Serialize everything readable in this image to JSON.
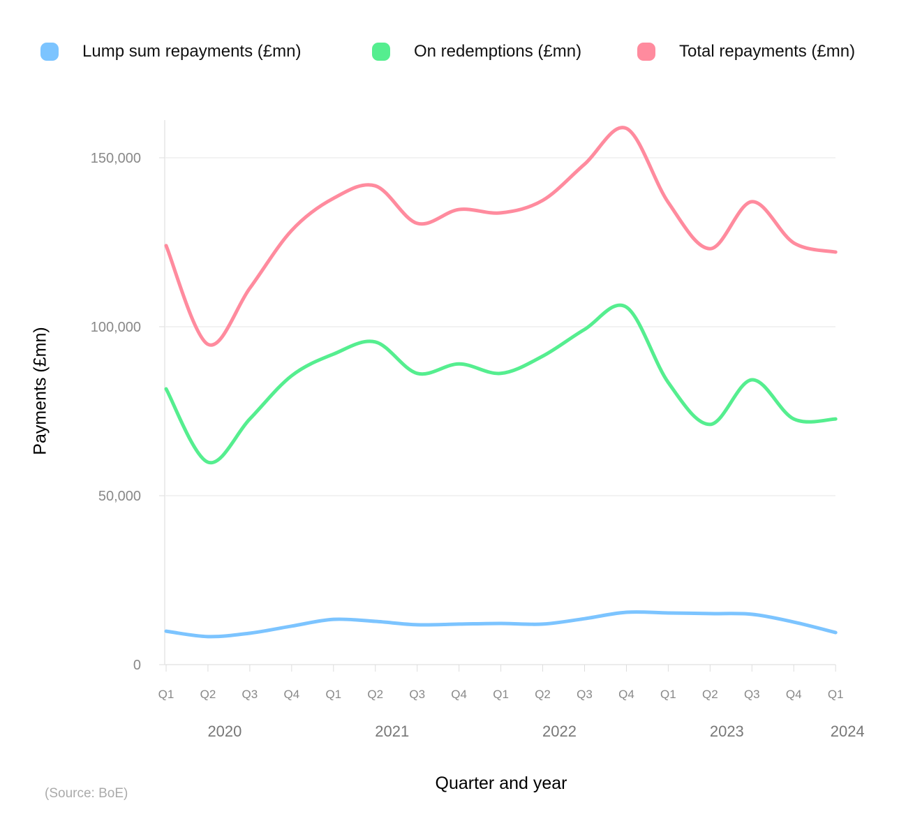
{
  "chart_data": {
    "type": "line",
    "title": "",
    "xlabel": "Quarter and year",
    "ylabel": "Payments (£mn)",
    "ylim": [
      0,
      160000
    ],
    "yticks": [
      0,
      50000,
      100000,
      150000
    ],
    "ytick_labels": [
      "0",
      "50,000",
      "100,000",
      "150,000"
    ],
    "grid": true,
    "legend": "top",
    "categories": [
      "Q1",
      "Q2",
      "Q3",
      "Q4",
      "Q1",
      "Q2",
      "Q3",
      "Q4",
      "Q1",
      "Q2",
      "Q3",
      "Q4",
      "Q1",
      "Q2",
      "Q3",
      "Q4",
      "Q1"
    ],
    "years": [
      {
        "label": "2020",
        "center_index": 1.5
      },
      {
        "label": "2021",
        "center_index": 5.5
      },
      {
        "label": "2022",
        "center_index": 9.5
      },
      {
        "label": "2023",
        "center_index": 13.5
      },
      {
        "label": "2024",
        "center_index": 16
      }
    ],
    "series": [
      {
        "name": "Lump sum repayments (£mn)",
        "color": "#7cc4ff",
        "values": [
          9900,
          8300,
          9300,
          11400,
          13400,
          12800,
          11800,
          12000,
          12200,
          12000,
          13600,
          15500,
          15300,
          15100,
          14900,
          12600,
          9500
        ]
      },
      {
        "name": "On redemptions (£mn)",
        "color": "#55ee8f",
        "values": [
          81600,
          59900,
          72700,
          85500,
          91900,
          95500,
          86200,
          89000,
          86200,
          91300,
          99200,
          105800,
          83500,
          71100,
          84300,
          72700,
          72700
        ]
      },
      {
        "name": "Total repayments (£mn)",
        "color": "#ff8b9e",
        "values": [
          124000,
          94800,
          111400,
          128500,
          138000,
          141700,
          130600,
          134700,
          133700,
          137400,
          148100,
          158700,
          136800,
          123100,
          137000,
          124800,
          122100
        ]
      }
    ]
  },
  "source": "(Source: BoE)"
}
